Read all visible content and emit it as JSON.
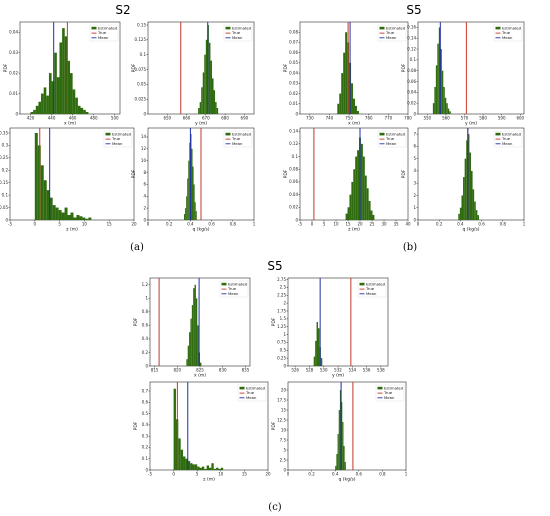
{
  "figure": {
    "captions": [
      "(a)",
      "(b)",
      "(c)"
    ],
    "group_titles": [
      "S2",
      "S5",
      "S5"
    ],
    "legend_labels": [
      "Estimated",
      "True",
      "Mean"
    ],
    "colors": {
      "estimated": "#2f6b0f",
      "true": "#c0392b",
      "mean": "#1f2fa8"
    }
  },
  "chart_data": [
    {
      "panel": "a-x",
      "type": "bar",
      "xlabel": "x (m)",
      "ylabel": "PDF",
      "xlim": [
        410,
        505
      ],
      "ylim": [
        0,
        0.045
      ],
      "xticks": [
        420,
        440,
        460,
        480,
        500
      ],
      "yticks": [
        0,
        0.01,
        0.02,
        0.03,
        0.04
      ],
      "bin_start": 420,
      "bin_width": 2.5,
      "values": [
        0.001,
        0.002,
        0.004,
        0.006,
        0.01,
        0.013,
        0.009,
        0.02,
        0.016,
        0.03,
        0.018,
        0.035,
        0.042,
        0.038,
        0.026,
        0.02,
        0.012,
        0.008,
        0.004,
        0.003,
        0.002,
        0.001
      ],
      "true_value": 455,
      "mean_value": 442
    },
    {
      "panel": "a-y",
      "type": "bar",
      "xlabel": "y (m)",
      "ylabel": "PDF",
      "xlim": [
        640,
        695
      ],
      "ylim": [
        0,
        0.155
      ],
      "xticks": [
        650,
        660,
        670,
        680,
        690
      ],
      "yticks": [
        0,
        0.025,
        0.05,
        0.075,
        0.1,
        0.125,
        0.15
      ],
      "bin_start": 666,
      "bin_width": 0.8,
      "values": [
        0.01,
        0.02,
        0.045,
        0.07,
        0.1,
        0.125,
        0.15,
        0.12,
        0.09,
        0.06,
        0.04,
        0.02,
        0.01
      ],
      "true_value": 657,
      "mean_value": 671
    },
    {
      "panel": "a-z",
      "type": "bar",
      "xlabel": "z (m)",
      "ylabel": "PDF",
      "xlim": [
        -5,
        20
      ],
      "ylim": [
        0,
        0.37
      ],
      "xticks": [
        -5,
        0,
        5,
        10,
        15,
        20
      ],
      "yticks": [
        0,
        0.05,
        0.1,
        0.15,
        0.2,
        0.25,
        0.3,
        0.35
      ],
      "bin_start": 0,
      "bin_width": 0.6,
      "values": [
        0.35,
        0.3,
        0.22,
        0.16,
        0.12,
        0.09,
        0.06,
        0.05,
        0.04,
        0.03,
        0.05,
        0.02,
        0.03,
        0.01,
        0.02,
        0.015,
        0.01,
        0.005,
        0.01
      ],
      "true_value": 1,
      "mean_value": 3
    },
    {
      "panel": "a-q",
      "type": "bar",
      "xlabel": "q (kg/s)",
      "ylabel": "PDF",
      "xlim": [
        0,
        1
      ],
      "ylim": [
        0,
        15.5
      ],
      "xticks": [
        0,
        0.2,
        0.4,
        0.6,
        0.8,
        1.0
      ],
      "yticks": [
        0,
        2,
        4,
        6,
        8,
        10,
        12,
        14
      ],
      "bin_start": 0.34,
      "bin_width": 0.01,
      "values": [
        1,
        2,
        4,
        7,
        10,
        13,
        14.5,
        12,
        9,
        6,
        3,
        1.5
      ],
      "true_value": 0.5,
      "mean_value": 0.4
    },
    {
      "panel": "b-x",
      "type": "bar",
      "xlabel": "x (m)",
      "ylabel": "PDF",
      "xlim": [
        725,
        780
      ],
      "ylim": [
        0,
        0.09
      ],
      "xticks": [
        730,
        740,
        750,
        760,
        770,
        780
      ],
      "yticks": [
        0,
        0.01,
        0.02,
        0.03,
        0.04,
        0.05,
        0.06,
        0.07,
        0.08
      ],
      "bin_start": 744,
      "bin_width": 1,
      "values": [
        0.01,
        0.02,
        0.04,
        0.06,
        0.08,
        0.07,
        0.05,
        0.03,
        0.015,
        0.008,
        0.003
      ],
      "true_value": 749.5,
      "mean_value": 750.5
    },
    {
      "panel": "b-y",
      "type": "bar",
      "xlabel": "y (m)",
      "ylabel": "PDF",
      "xlim": [
        545,
        602
      ],
      "ylim": [
        0,
        0.17
      ],
      "xticks": [
        550,
        560,
        570,
        580,
        590,
        600
      ],
      "yticks": [
        0,
        0.02,
        0.04,
        0.06,
        0.08,
        0.1,
        0.12,
        0.14,
        0.16
      ],
      "bin_start": 553,
      "bin_width": 0.8,
      "values": [
        0.02,
        0.05,
        0.09,
        0.13,
        0.16,
        0.12,
        0.08,
        0.05,
        0.03,
        0.02,
        0.01,
        0.005
      ],
      "true_value": 571,
      "mean_value": 557
    },
    {
      "panel": "b-z",
      "type": "bar",
      "xlabel": "z (m)",
      "ylabel": "PDF",
      "xlim": [
        -5,
        40
      ],
      "ylim": [
        0,
        0.145
      ],
      "xticks": [
        -5,
        0,
        5,
        10,
        15,
        20,
        25,
        30,
        35,
        40
      ],
      "yticks": [
        0,
        0.02,
        0.04,
        0.06,
        0.08,
        0.1,
        0.12,
        0.14
      ],
      "bin_start": 14,
      "bin_width": 0.8,
      "values": [
        0.01,
        0.02,
        0.04,
        0.06,
        0.08,
        0.1,
        0.11,
        0.13,
        0.12,
        0.1,
        0.07,
        0.05,
        0.03,
        0.015,
        0.008
      ],
      "true_value": 0.8,
      "mean_value": 20
    },
    {
      "panel": "b-q",
      "type": "bar",
      "xlabel": "q (kg/s)",
      "ylabel": "PDF",
      "xlim": [
        0,
        1
      ],
      "ylim": [
        0,
        7.5
      ],
      "xticks": [
        0,
        0.2,
        0.4,
        0.6,
        0.8,
        1.0
      ],
      "yticks": [
        0,
        1,
        2,
        3,
        4,
        5,
        6,
        7
      ],
      "bin_start": 0.38,
      "bin_width": 0.015,
      "values": [
        0.5,
        1,
        2,
        3.5,
        5,
        6.5,
        7,
        5.5,
        4,
        2.5,
        1.5,
        0.8,
        0.4
      ],
      "true_value": 0.47,
      "mean_value": 0.47
    },
    {
      "panel": "c-x",
      "type": "bar",
      "xlabel": "x (m)",
      "ylabel": "PDF",
      "xlim": [
        814,
        836
      ],
      "ylim": [
        0,
        1.3
      ],
      "xticks": [
        815,
        820,
        825,
        830,
        835
      ],
      "yticks": [
        0,
        0.2,
        0.4,
        0.6,
        0.8,
        1.0,
        1.2
      ],
      "bin_start": 822,
      "bin_width": 0.3,
      "values": [
        0.1,
        0.3,
        0.5,
        0.7,
        0.9,
        1.15,
        1.2,
        1.0,
        0.6,
        0.2,
        0.05
      ],
      "true_value": 816,
      "mean_value": 824.8
    },
    {
      "panel": "c-y",
      "type": "bar",
      "xlabel": "y (m)",
      "ylabel": "PDF",
      "xlim": [
        525,
        539
      ],
      "ylim": [
        0,
        2.8
      ],
      "xticks": [
        526,
        528,
        530,
        532,
        534,
        536,
        538
      ],
      "yticks": [
        0,
        0.25,
        0.5,
        0.75,
        1,
        1.25,
        1.5,
        1.75,
        2,
        2.25,
        2.5,
        2.75
      ],
      "bin_start": 528.6,
      "bin_width": 0.2,
      "values": [
        0.3,
        0.8,
        1.4,
        1.2,
        0.6,
        0.25
      ],
      "true_value": 533.8,
      "mean_value": 529.5
    },
    {
      "panel": "c-z",
      "type": "bar",
      "xlabel": "z (m)",
      "ylabel": "PDF",
      "xlim": [
        -5,
        20
      ],
      "ylim": [
        0,
        0.78
      ],
      "xticks": [
        -5,
        0,
        5,
        10,
        15,
        20
      ],
      "yticks": [
        0,
        0.1,
        0.2,
        0.3,
        0.4,
        0.5,
        0.6,
        0.7
      ],
      "bin_start": 0,
      "bin_width": 0.5,
      "values": [
        0.72,
        0.45,
        0.28,
        0.18,
        0.12,
        0.1,
        0.08,
        0.06,
        0.05,
        0.05,
        0.03,
        0.02,
        0.03,
        0.01,
        0.04,
        0.02,
        0.06,
        0.01,
        0.02,
        0.01,
        0.02
      ],
      "true_value": 0.8,
      "mean_value": 3
    },
    {
      "panel": "c-q",
      "type": "bar",
      "xlabel": "q (kg/s)",
      "ylabel": "PDF",
      "xlim": [
        0,
        1
      ],
      "ylim": [
        0,
        22
      ],
      "xticks": [
        0,
        0.2,
        0.4,
        0.6,
        0.8,
        1.0
      ],
      "yticks": [
        0,
        2.5,
        5,
        7.5,
        10,
        12.5,
        15,
        17.5,
        20
      ],
      "bin_start": 0.4,
      "bin_width": 0.01,
      "values": [
        1,
        4,
        9,
        15,
        20,
        17,
        12,
        6,
        2
      ],
      "true_value": 0.55,
      "mean_value": 0.45
    }
  ]
}
